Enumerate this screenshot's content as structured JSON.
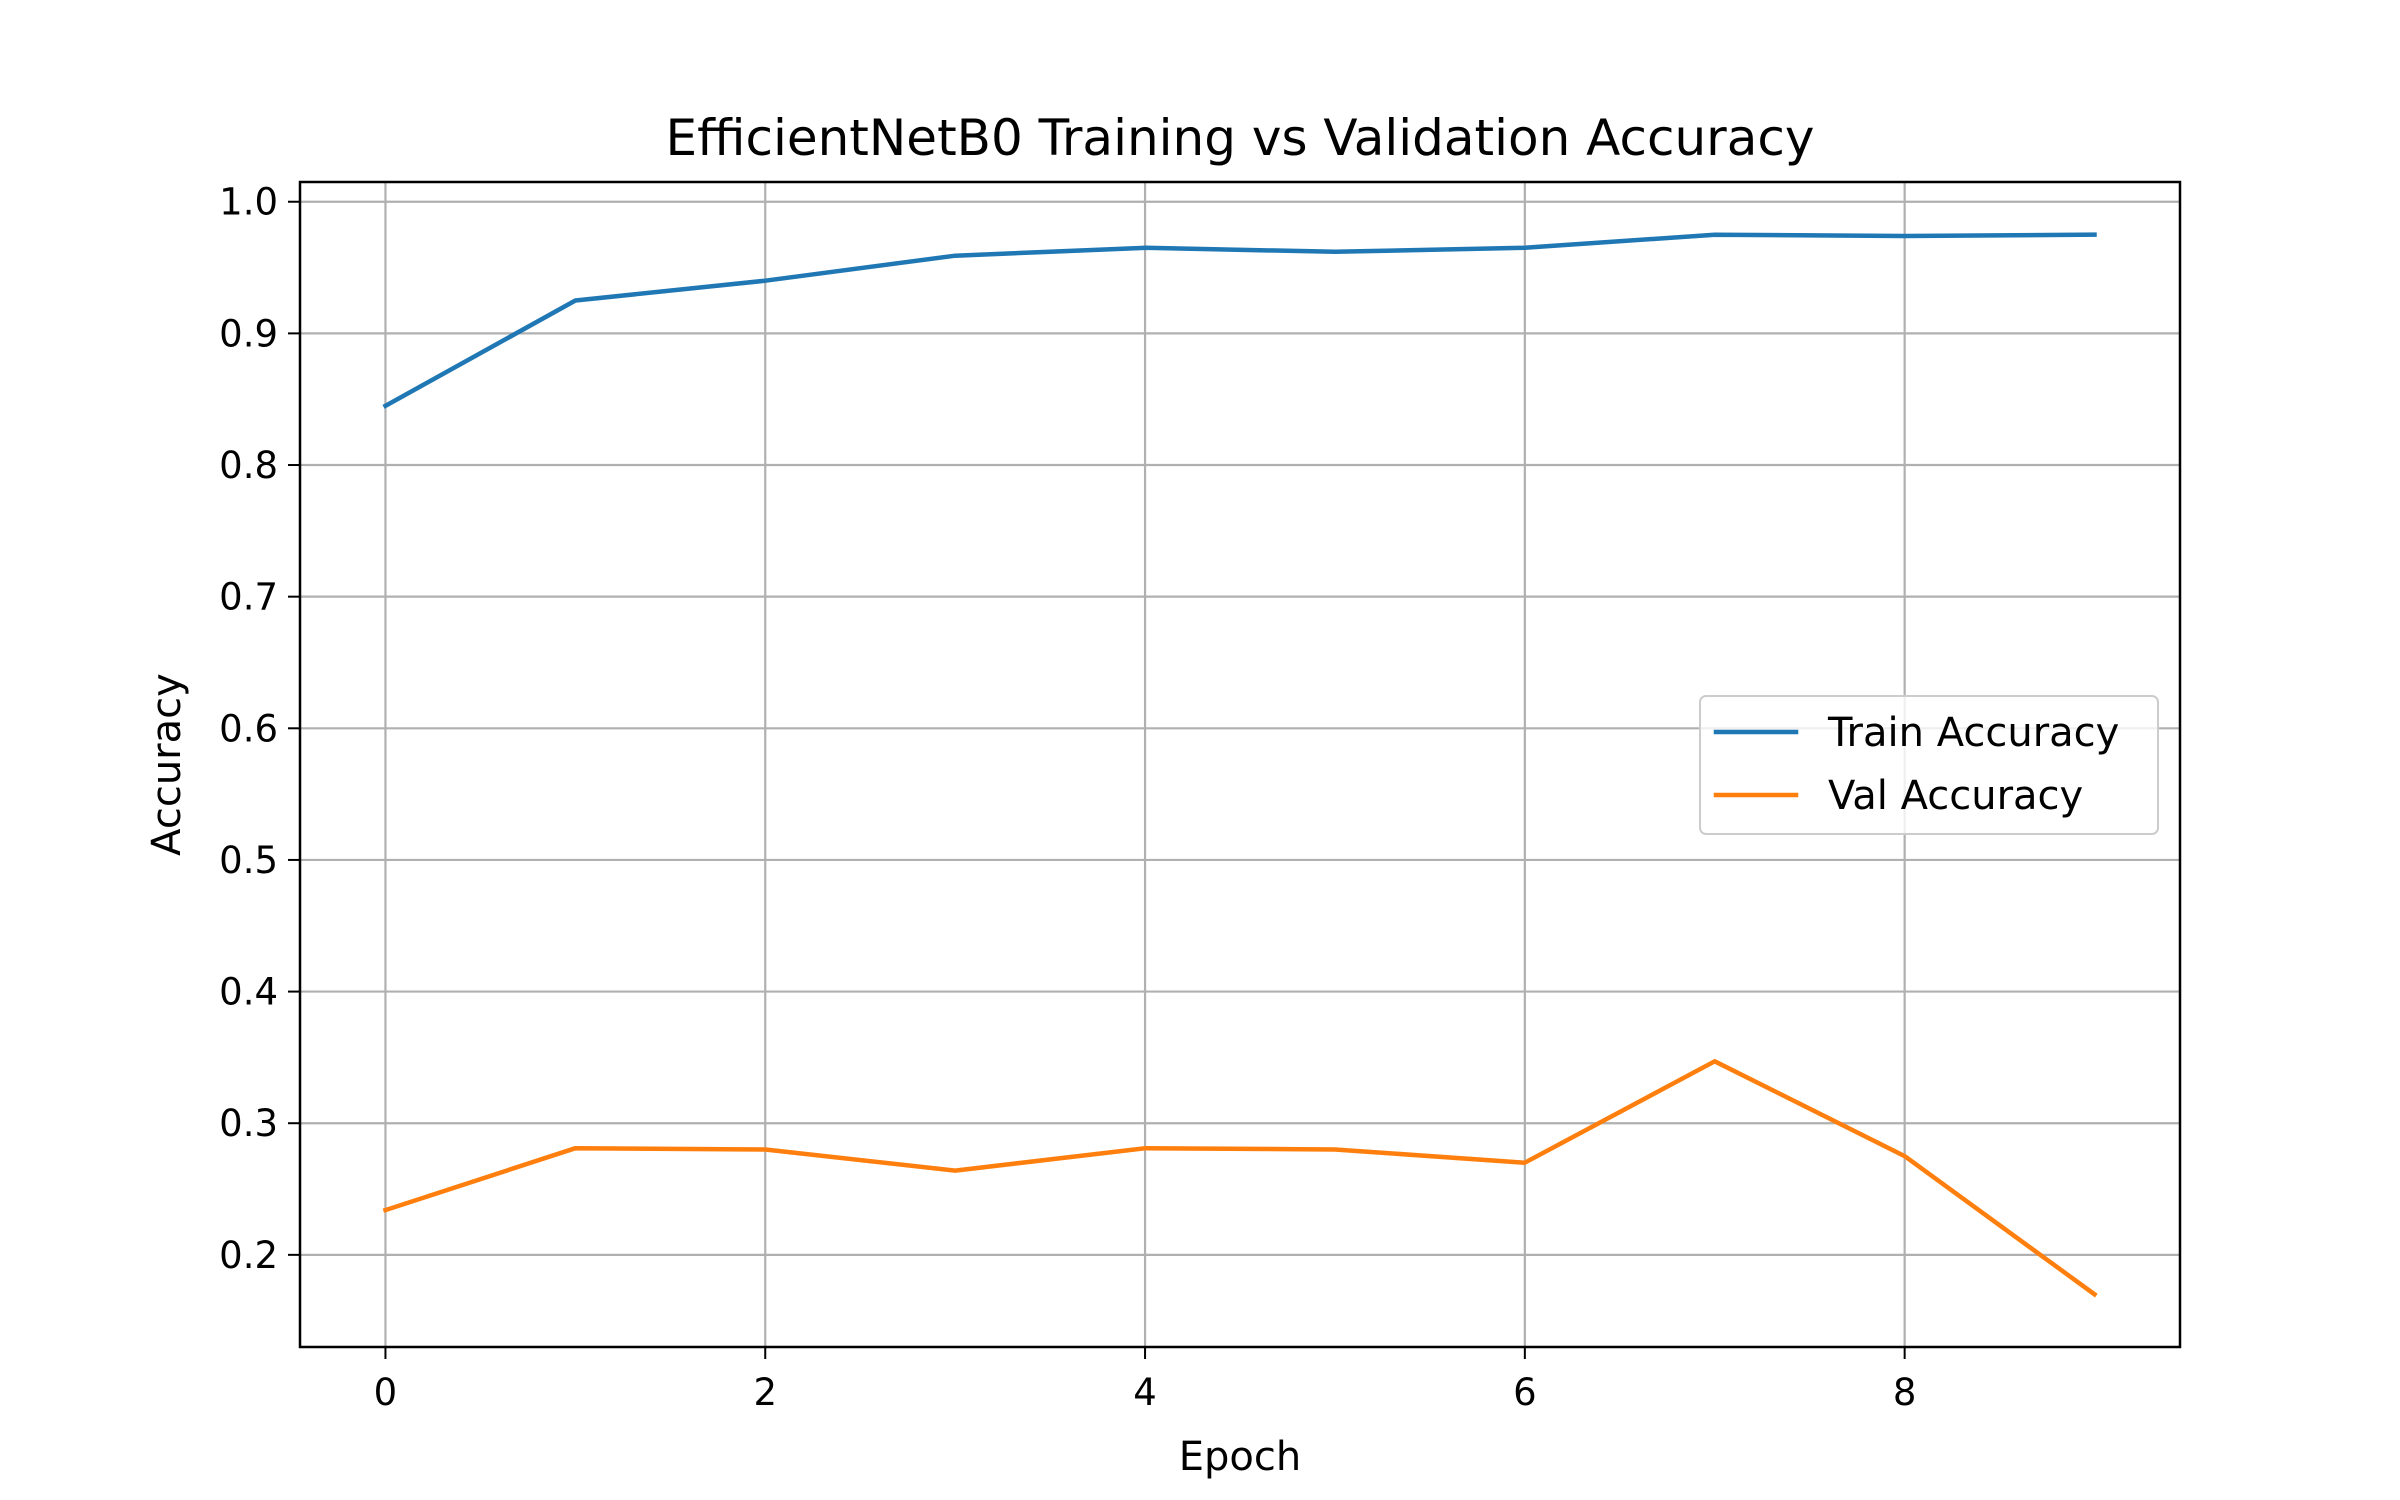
{
  "chart_data": {
    "type": "line",
    "title": "EfficientNetB0 Training vs Validation Accuracy",
    "xlabel": "Epoch",
    "ylabel": "Accuracy",
    "x": [
      0,
      1,
      2,
      3,
      4,
      5,
      6,
      7,
      8,
      9
    ],
    "xlim": [
      -0.45,
      9.45
    ],
    "ylim": [
      0.13,
      1.015
    ],
    "xticks": [
      0,
      2,
      4,
      6,
      8
    ],
    "yticks": [
      0.2,
      0.3,
      0.4,
      0.5,
      0.6,
      0.7,
      0.8,
      0.9,
      1.0
    ],
    "ytick_labels": [
      "0.2",
      "0.3",
      "0.4",
      "0.5",
      "0.6",
      "0.7",
      "0.8",
      "0.9",
      "1.0"
    ],
    "grid": true,
    "legend_position": "center-right",
    "series": [
      {
        "name": "Train Accuracy",
        "color": "#1f77b4",
        "values": [
          0.845,
          0.925,
          0.94,
          0.959,
          0.965,
          0.962,
          0.965,
          0.975,
          0.974,
          0.975
        ]
      },
      {
        "name": "Val Accuracy",
        "color": "#ff7f0e",
        "values": [
          0.234,
          0.281,
          0.28,
          0.264,
          0.281,
          0.28,
          0.27,
          0.347,
          0.275,
          0.17
        ]
      }
    ]
  }
}
